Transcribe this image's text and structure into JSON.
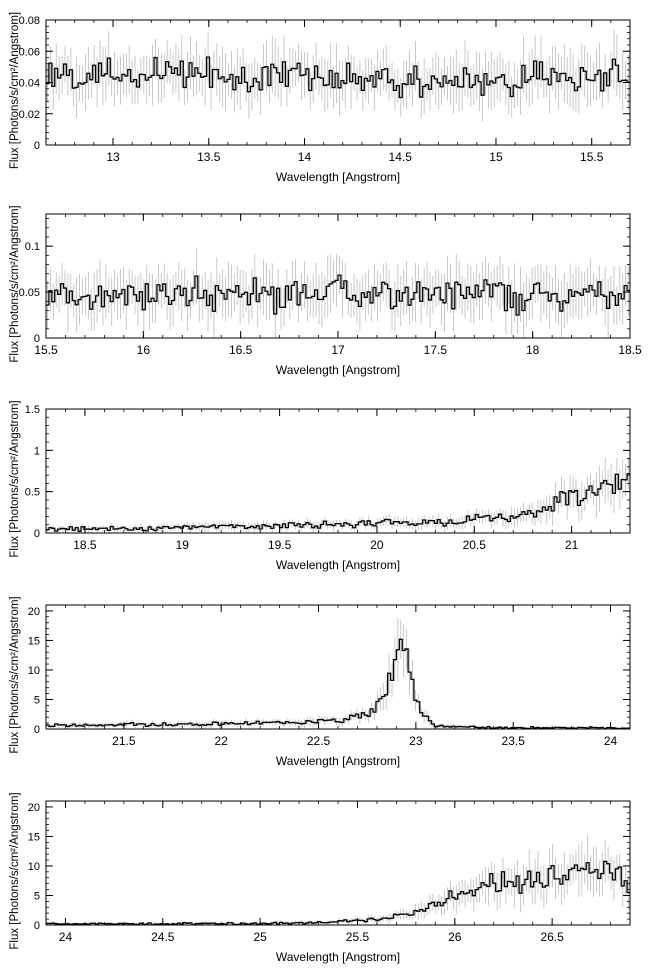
{
  "chart_data": [
    {
      "type": "line",
      "xlabel": "Wavelength [Angstrom]",
      "ylabel": "Flux [Photons/s/cm²/Angstrom]",
      "xlim": [
        12.65,
        15.7
      ],
      "ylim": [
        0,
        0.08
      ],
      "xticks": [
        13,
        13.5,
        14,
        14.5,
        15,
        15.5
      ],
      "xtick_labels": [
        "13",
        "13.5",
        "14",
        "14.5",
        "15",
        "15.5"
      ],
      "yticks": [
        0,
        0.02,
        0.04,
        0.06,
        0.08
      ],
      "ytick_labels": [
        "0",
        "0.02",
        "0.04",
        "0.06",
        "0.08"
      ],
      "grid": false,
      "series": [
        {
          "style": "step",
          "color": "#000000",
          "error_color": "#bbbbbb",
          "x": [
            12.7,
            12.9,
            13.1,
            13.3,
            13.5,
            13.7,
            13.9,
            14.1,
            14.3,
            14.5,
            14.7,
            14.9,
            15.1,
            15.3,
            15.5,
            15.65
          ],
          "y": [
            0.043,
            0.045,
            0.042,
            0.046,
            0.044,
            0.041,
            0.045,
            0.043,
            0.04,
            0.038,
            0.041,
            0.043,
            0.04,
            0.042,
            0.044,
            0.043
          ]
        }
      ]
    },
    {
      "type": "line",
      "xlabel": "Wavelength [Angstrom]",
      "ylabel": "Flux [Photons/s/cm²/Angstrom]",
      "xlim": [
        15.5,
        18.5
      ],
      "ylim": [
        0,
        0.135
      ],
      "xticks": [
        15.5,
        16,
        16.5,
        17,
        17.5,
        18,
        18.5
      ],
      "xtick_labels": [
        "15.5",
        "16",
        "16.5",
        "17",
        "17.5",
        "18",
        "18.5"
      ],
      "yticks": [
        0,
        0.05,
        0.1
      ],
      "ytick_labels": [
        "0",
        "0.05",
        "0.1"
      ],
      "grid": false,
      "series": [
        {
          "style": "step",
          "color": "#000000",
          "error_color": "#bbbbbb",
          "x": [
            15.5,
            15.75,
            16.0,
            16.25,
            16.5,
            16.75,
            17.0,
            17.25,
            17.5,
            17.75,
            18.0,
            18.25,
            18.5
          ],
          "y": [
            0.045,
            0.048,
            0.05,
            0.047,
            0.046,
            0.048,
            0.049,
            0.047,
            0.048,
            0.046,
            0.047,
            0.046,
            0.048
          ]
        }
      ]
    },
    {
      "type": "line",
      "xlabel": "Wavelength [Angstrom]",
      "ylabel": "Flux [Photons/s/cm²/Angstrom]",
      "xlim": [
        18.3,
        21.3
      ],
      "ylim": [
        0,
        1.5
      ],
      "xticks": [
        18.5,
        19,
        19.5,
        20,
        20.5,
        21
      ],
      "xtick_labels": [
        "18.5",
        "19",
        "19.5",
        "20",
        "20.5",
        "21"
      ],
      "yticks": [
        0,
        0.5,
        1,
        1.5
      ],
      "ytick_labels": [
        "0",
        "0.5",
        "1",
        "1.5"
      ],
      "grid": false,
      "series": [
        {
          "style": "step",
          "color": "#000000",
          "error_color": "#bbbbbb",
          "x": [
            18.3,
            18.6,
            18.9,
            19.2,
            19.5,
            19.8,
            20.1,
            20.4,
            20.6,
            20.8,
            20.95,
            21.1,
            21.3
          ],
          "y": [
            0.05,
            0.05,
            0.06,
            0.08,
            0.09,
            0.1,
            0.12,
            0.14,
            0.17,
            0.25,
            0.4,
            0.55,
            0.6
          ]
        }
      ]
    },
    {
      "type": "line",
      "xlabel": "Wavelength [Angstrom]",
      "ylabel": "Flux [Photons/s/cm²/Angstrom]",
      "xlim": [
        21.1,
        24.1
      ],
      "ylim": [
        0,
        21
      ],
      "xticks": [
        21.5,
        22,
        22.5,
        23,
        23.5,
        24
      ],
      "xtick_labels": [
        "21.5",
        "22",
        "22.5",
        "23",
        "23.5",
        "24"
      ],
      "yticks": [
        0,
        5,
        10,
        15,
        20
      ],
      "ytick_labels": [
        "0",
        "5",
        "10",
        "15",
        "20"
      ],
      "grid": false,
      "series": [
        {
          "style": "step",
          "color": "#000000",
          "error_color": "#bbbbbb",
          "x": [
            21.1,
            21.5,
            21.8,
            22.1,
            22.4,
            22.6,
            22.75,
            22.82,
            22.88,
            22.93,
            22.97,
            23.02,
            23.1,
            23.4,
            24.1
          ],
          "y": [
            0.6,
            0.7,
            0.8,
            1.0,
            1.2,
            1.5,
            2.5,
            4.5,
            9.5,
            13.5,
            9.0,
            3.0,
            0.5,
            0.2,
            0.2
          ]
        }
      ]
    },
    {
      "type": "line",
      "xlabel": "Wavelength [Angstrom]",
      "ylabel": "Flux [Photons/s/cm²/Angstrom]",
      "xlim": [
        23.9,
        26.9
      ],
      "ylim": [
        0,
        21
      ],
      "xticks": [
        24,
        24.5,
        25,
        25.5,
        26,
        26.5
      ],
      "xtick_labels": [
        "24",
        "24.5",
        "25",
        "25.5",
        "26",
        "26.5"
      ],
      "yticks": [
        0,
        5,
        10,
        15,
        20
      ],
      "ytick_labels": [
        "0",
        "5",
        "10",
        "15",
        "20"
      ],
      "grid": false,
      "series": [
        {
          "style": "step",
          "color": "#000000",
          "error_color": "#bbbbbb",
          "x": [
            23.9,
            24.5,
            25.0,
            25.4,
            25.6,
            25.75,
            25.9,
            26.0,
            26.15,
            26.3,
            26.5,
            26.7,
            26.9
          ],
          "y": [
            0.2,
            0.2,
            0.25,
            0.5,
            1.0,
            2.0,
            3.5,
            5.0,
            6.5,
            7.5,
            8.5,
            10.0,
            8.0
          ]
        }
      ]
    }
  ]
}
